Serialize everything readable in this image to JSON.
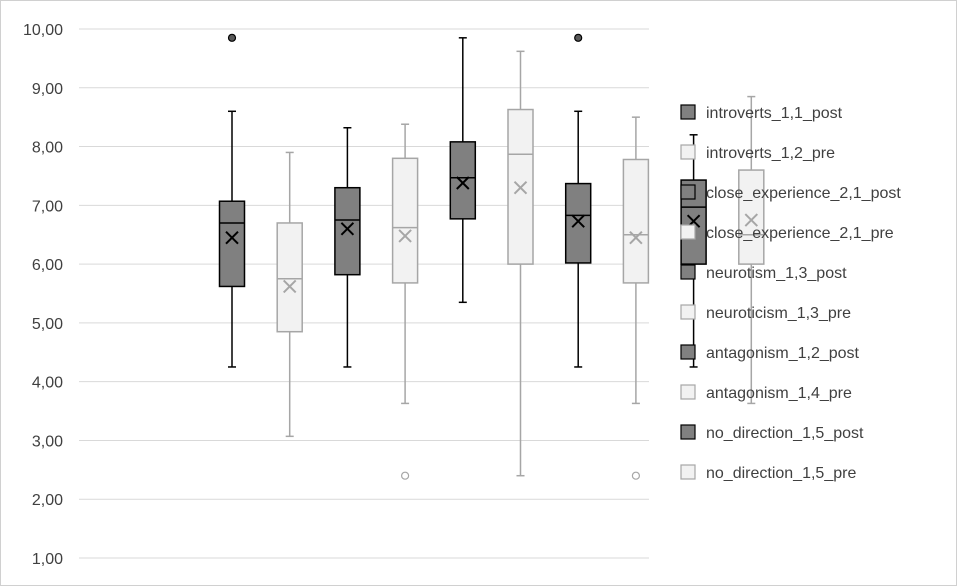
{
  "chart_data": {
    "type": "boxplot",
    "title": "",
    "xlabel": "",
    "ylabel": "",
    "ylim": [
      1,
      10
    ],
    "y_ticks": [
      "1,00",
      "2,00",
      "3,00",
      "4,00",
      "5,00",
      "6,00",
      "7,00",
      "8,00",
      "9,00",
      "10,00"
    ],
    "y_tick_values": [
      1,
      2,
      3,
      4,
      5,
      6,
      7,
      8,
      9,
      10
    ],
    "grid": "horizontal",
    "legend_position": "right",
    "series": [
      {
        "name": "introverts_1,1_post",
        "color": "#808080",
        "stroke": "#000000",
        "min": 4.25,
        "q1": 5.62,
        "median": 6.7,
        "q3": 7.07,
        "max": 8.6,
        "mean": 6.45,
        "outliers": [
          9.85
        ]
      },
      {
        "name": "introverts_1,2_pre",
        "color": "#f2f2f2",
        "stroke": "#a6a6a6",
        "min": 3.07,
        "q1": 4.85,
        "median": 5.75,
        "q3": 6.7,
        "max": 7.9,
        "mean": 5.62,
        "outliers": []
      },
      {
        "name": "close_experience_2,1_post",
        "color": "#808080",
        "stroke": "#000000",
        "min": 4.25,
        "q1": 5.82,
        "median": 6.75,
        "q3": 7.3,
        "max": 8.32,
        "mean": 6.6,
        "outliers": []
      },
      {
        "name": "close_experience_2,1_pre",
        "color": "#f2f2f2",
        "stroke": "#a6a6a6",
        "min": 3.63,
        "q1": 5.68,
        "median": 6.62,
        "q3": 7.8,
        "max": 8.38,
        "mean": 6.48,
        "outliers": [
          2.4
        ]
      },
      {
        "name": "neurotism_1,3_post",
        "color": "#808080",
        "stroke": "#000000",
        "min": 5.35,
        "q1": 6.77,
        "median": 7.47,
        "q3": 8.08,
        "max": 9.85,
        "mean": 7.38,
        "outliers": []
      },
      {
        "name": "neuroticism_1,3_pre",
        "color": "#f2f2f2",
        "stroke": "#a6a6a6",
        "min": 2.4,
        "q1": 6.0,
        "median": 7.87,
        "q3": 8.63,
        "max": 9.62,
        "mean": 7.3,
        "outliers": []
      },
      {
        "name": "antagonism_1,2_post",
        "color": "#808080",
        "stroke": "#000000",
        "min": 4.25,
        "q1": 6.02,
        "median": 6.83,
        "q3": 7.37,
        "max": 8.6,
        "mean": 6.73,
        "outliers": [
          9.85
        ]
      },
      {
        "name": "antagonism_1,4_pre",
        "color": "#f2f2f2",
        "stroke": "#a6a6a6",
        "min": 3.63,
        "q1": 5.68,
        "median": 6.5,
        "q3": 7.78,
        "max": 8.5,
        "mean": 6.45,
        "outliers": [
          2.4
        ]
      },
      {
        "name": "no_direction_1,5_post",
        "color": "#808080",
        "stroke": "#000000",
        "min": 4.25,
        "q1": 6.0,
        "median": 6.97,
        "q3": 7.43,
        "max": 8.2,
        "mean": 6.73,
        "outliers": []
      },
      {
        "name": "no_direction_1,5_pre",
        "color": "#f2f2f2",
        "stroke": "#a6a6a6",
        "min": 3.63,
        "q1": 6.0,
        "median": 6.5,
        "q3": 7.6,
        "max": 8.85,
        "mean": 6.75,
        "outliers": []
      }
    ]
  }
}
